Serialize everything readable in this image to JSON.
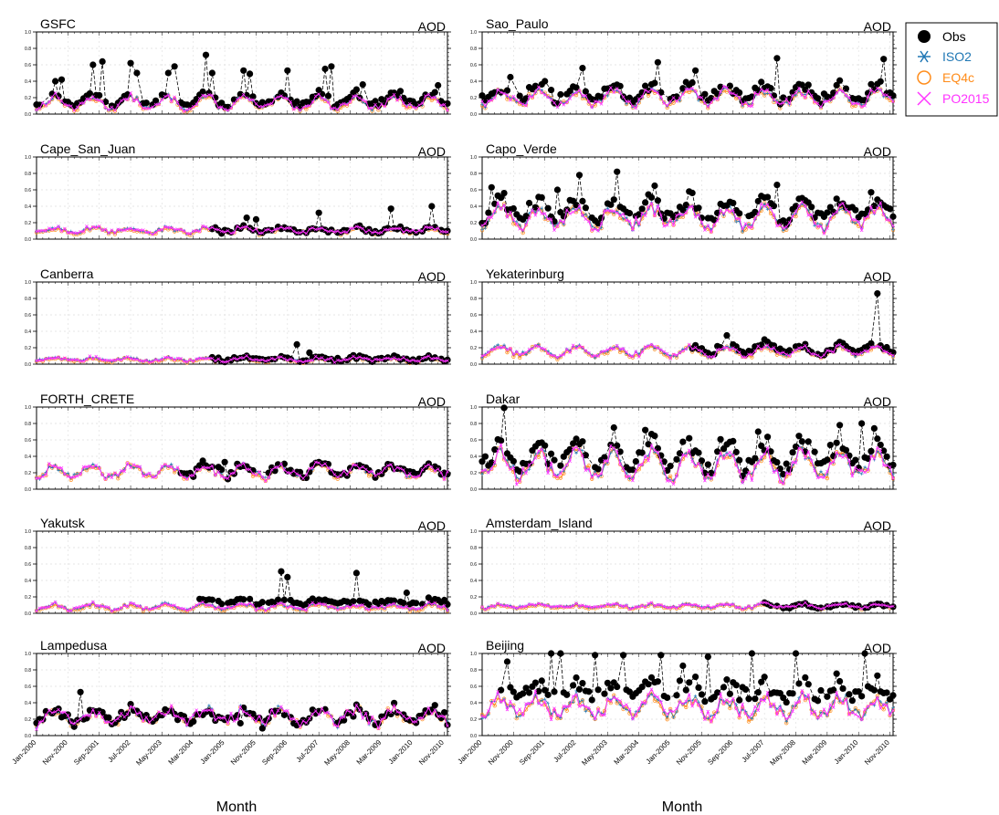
{
  "figure": {
    "xlabel": "Month",
    "ylabel_right": "AOD",
    "ytick_labels": [
      "0.0",
      "0.2",
      "0.4",
      "0.6",
      "0.8",
      "1.0"
    ],
    "xtick_labels": [
      "Jan-2000",
      "Nov-2000",
      "Sep-2001",
      "Jul-2002",
      "May-2003",
      "Mar-2004",
      "Jan-2005",
      "Nov-2005",
      "Sep-2006",
      "Jul-2007",
      "May-2008",
      "Mar-2009",
      "Jan-2010",
      "Nov-2010"
    ]
  },
  "legend": [
    {
      "name": "Obs",
      "color": "#000000",
      "marker": "filled-circle"
    },
    {
      "name": "ISO2",
      "color": "#1f77b4",
      "marker": "asterisk"
    },
    {
      "name": "EQ4c",
      "color": "#ff8c1a",
      "marker": "open-circle"
    },
    {
      "name": "PO2015",
      "color": "#ff33ff",
      "marker": "cross"
    }
  ],
  "chart_data": [
    {
      "type": "line",
      "title": "GSFC",
      "ylabel": "AOD",
      "ylim": [
        0,
        1
      ],
      "months": 132,
      "obs_months": [
        0,
        131
      ],
      "model_base": 0.14,
      "seasonal_amp": 0.07,
      "noise": 0.03,
      "obs_offset": 0.04,
      "obs_peaks": [
        [
          6,
          0.4
        ],
        [
          8,
          0.42
        ],
        [
          18,
          0.6
        ],
        [
          21,
          0.64
        ],
        [
          30,
          0.62
        ],
        [
          32,
          0.5
        ],
        [
          42,
          0.5
        ],
        [
          44,
          0.58
        ],
        [
          54,
          0.72
        ],
        [
          56,
          0.5
        ],
        [
          66,
          0.53
        ],
        [
          68,
          0.49
        ],
        [
          80,
          0.53
        ],
        [
          92,
          0.55
        ],
        [
          94,
          0.58
        ],
        [
          104,
          0.36
        ],
        [
          116,
          0.28
        ],
        [
          128,
          0.35
        ]
      ]
    },
    {
      "type": "line",
      "title": "Sao_Paulo",
      "ylabel": "AOD",
      "ylim": [
        0,
        1
      ],
      "months": 132,
      "obs_months": [
        0,
        131
      ],
      "model_base": 0.2,
      "seasonal_amp": 0.08,
      "noise": 0.04,
      "obs_offset": 0.06,
      "obs_peaks": [
        [
          9,
          0.45
        ],
        [
          20,
          0.4
        ],
        [
          32,
          0.56
        ],
        [
          56,
          0.63
        ],
        [
          68,
          0.53
        ],
        [
          94,
          0.68
        ],
        [
          128,
          0.67
        ]
      ]
    },
    {
      "type": "line",
      "title": "Cape_San_Juan",
      "ylabel": "AOD",
      "ylim": [
        0,
        1
      ],
      "months": 132,
      "obs_months": [
        56,
        131
      ],
      "model_base": 0.11,
      "seasonal_amp": 0.03,
      "noise": 0.02,
      "obs_offset": 0.0,
      "obs_peaks": [
        [
          67,
          0.26
        ],
        [
          70,
          0.24
        ],
        [
          90,
          0.32
        ],
        [
          113,
          0.37
        ],
        [
          126,
          0.4
        ]
      ]
    },
    {
      "type": "line",
      "title": "Capo_Verde",
      "ylabel": "AOD",
      "ylim": [
        0,
        1
      ],
      "months": 132,
      "obs_months": [
        0,
        131
      ],
      "model_base": 0.27,
      "seasonal_amp": 0.12,
      "noise": 0.06,
      "obs_offset": 0.1,
      "obs_peaks": [
        [
          3,
          0.63
        ],
        [
          7,
          0.56
        ],
        [
          24,
          0.6
        ],
        [
          31,
          0.78
        ],
        [
          43,
          0.82
        ],
        [
          55,
          0.65
        ],
        [
          66,
          0.58
        ],
        [
          94,
          0.66
        ],
        [
          124,
          0.57
        ]
      ]
    },
    {
      "type": "line",
      "title": "Canberra",
      "ylabel": "AOD",
      "ylim": [
        0,
        1
      ],
      "months": 132,
      "obs_months": [
        56,
        131
      ],
      "model_base": 0.06,
      "seasonal_amp": 0.02,
      "noise": 0.015,
      "obs_offset": 0.01,
      "obs_peaks": [
        [
          87,
          0.14
        ],
        [
          83,
          0.24
        ]
      ]
    },
    {
      "type": "line",
      "title": "Yekaterinburg",
      "ylabel": "AOD",
      "ylim": [
        0,
        1
      ],
      "months": 132,
      "obs_months": [
        66,
        131
      ],
      "model_base": 0.16,
      "seasonal_amp": 0.05,
      "noise": 0.03,
      "obs_offset": 0.03,
      "obs_peaks": [
        [
          78,
          0.35
        ],
        [
          90,
          0.3
        ],
        [
          126,
          0.86
        ]
      ]
    },
    {
      "type": "line",
      "title": "FORTH_CRETE",
      "ylabel": "AOD",
      "ylim": [
        0,
        1
      ],
      "months": 132,
      "obs_months": [
        46,
        131
      ],
      "model_base": 0.22,
      "seasonal_amp": 0.07,
      "noise": 0.04,
      "obs_offset": 0.02,
      "obs_peaks": [
        [
          60,
          0.33
        ],
        [
          90,
          0.33
        ]
      ]
    },
    {
      "type": "line",
      "title": "Dakar",
      "ylabel": "AOD",
      "ylim": [
        0,
        1
      ],
      "months": 132,
      "obs_months": [
        0,
        131
      ],
      "model_base": 0.3,
      "seasonal_amp": 0.15,
      "noise": 0.07,
      "obs_offset": 0.12,
      "obs_peaks": [
        [
          7,
          0.99
        ],
        [
          42,
          0.75
        ],
        [
          52,
          0.72
        ],
        [
          66,
          0.62
        ],
        [
          88,
          0.7
        ],
        [
          114,
          0.78
        ],
        [
          121,
          0.8
        ],
        [
          125,
          0.74
        ]
      ]
    },
    {
      "type": "line",
      "title": "Yakutsk",
      "ylabel": "AOD",
      "ylim": [
        0,
        1
      ],
      "months": 132,
      "obs_months": [
        52,
        131
      ],
      "model_base": 0.08,
      "seasonal_amp": 0.03,
      "noise": 0.02,
      "obs_offset": 0.06,
      "obs_peaks": [
        [
          78,
          0.51
        ],
        [
          80,
          0.44
        ],
        [
          102,
          0.49
        ],
        [
          118,
          0.25
        ]
      ]
    },
    {
      "type": "line",
      "title": "Amsterdam_Island",
      "ylabel": "AOD",
      "ylim": [
        0,
        1
      ],
      "months": 132,
      "obs_months": [
        90,
        131
      ],
      "model_base": 0.09,
      "seasonal_amp": 0.02,
      "noise": 0.015,
      "obs_offset": 0.0,
      "obs_peaks": []
    },
    {
      "type": "line",
      "title": "Lampedusa",
      "ylabel": "AOD",
      "ylim": [
        0,
        1
      ],
      "months": 132,
      "obs_months": [
        0,
        131
      ],
      "model_base": 0.24,
      "seasonal_amp": 0.08,
      "noise": 0.05,
      "obs_offset": 0.0,
      "obs_peaks": [
        [
          14,
          0.53
        ],
        [
          55,
          0.3
        ],
        [
          65,
          0.15
        ]
      ]
    },
    {
      "type": "line",
      "title": "Beijing",
      "ylabel": "AOD",
      "ylim": [
        0,
        1
      ],
      "months": 132,
      "obs_months": [
        6,
        131
      ],
      "model_base": 0.35,
      "seasonal_amp": 0.1,
      "noise": 0.07,
      "obs_offset": 0.2,
      "obs_peaks": [
        [
          8,
          0.9
        ],
        [
          22,
          1.0
        ],
        [
          25,
          1.0
        ],
        [
          36,
          0.98
        ],
        [
          45,
          0.98
        ],
        [
          57,
          0.98
        ],
        [
          64,
          0.85
        ],
        [
          72,
          0.96
        ],
        [
          86,
          1.0
        ],
        [
          100,
          1.0
        ],
        [
          122,
          1.0
        ],
        [
          126,
          0.73
        ]
      ]
    }
  ]
}
